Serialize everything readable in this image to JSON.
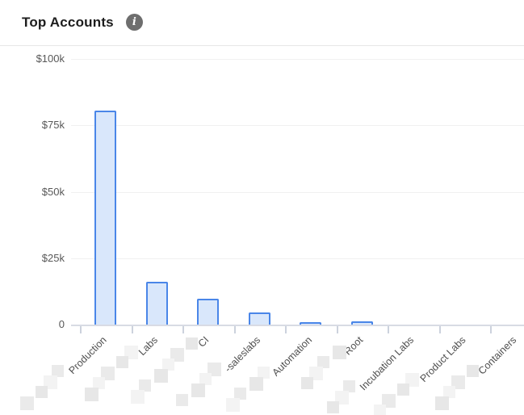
{
  "header": {
    "title": "Top Accounts",
    "info_glyph": "i"
  },
  "chart_data": {
    "type": "bar",
    "title": "Top Accounts",
    "categories": [
      "Production",
      "Labs",
      "CI",
      "-saleslabs",
      "Automation",
      "Root",
      "Incubation Labs",
      "Product Labs",
      "Containers"
    ],
    "values": [
      80500,
      16200,
      9800,
      4600,
      900,
      1100,
      0,
      0,
      0
    ],
    "redacted_prefix": [
      true,
      true,
      true,
      true,
      true,
      true,
      true,
      true,
      true
    ],
    "redaction_steps": [
      4,
      5,
      6,
      4,
      4,
      4,
      3,
      4,
      4
    ],
    "y_tick_labels": [
      "$100k",
      "$75k",
      "$50k",
      "$25k",
      "0"
    ],
    "y_tick_values": [
      100000,
      75000,
      50000,
      25000,
      0
    ],
    "ylim": [
      0,
      100000
    ],
    "xlabel": "",
    "ylabel": "",
    "legend": "none",
    "grid": true,
    "colors": {
      "bar_fill": "#d9e7fb",
      "bar_border": "#4a86e8",
      "grid": "#f0f0f0",
      "axis": "#d8dbe4",
      "tick": "#ccd2dd",
      "y_label": "#585858",
      "x_label": "#4f4f4f",
      "redaction_shades": [
        "#eaeaea",
        "#f3f3f3",
        "#e7e7e7"
      ]
    }
  }
}
